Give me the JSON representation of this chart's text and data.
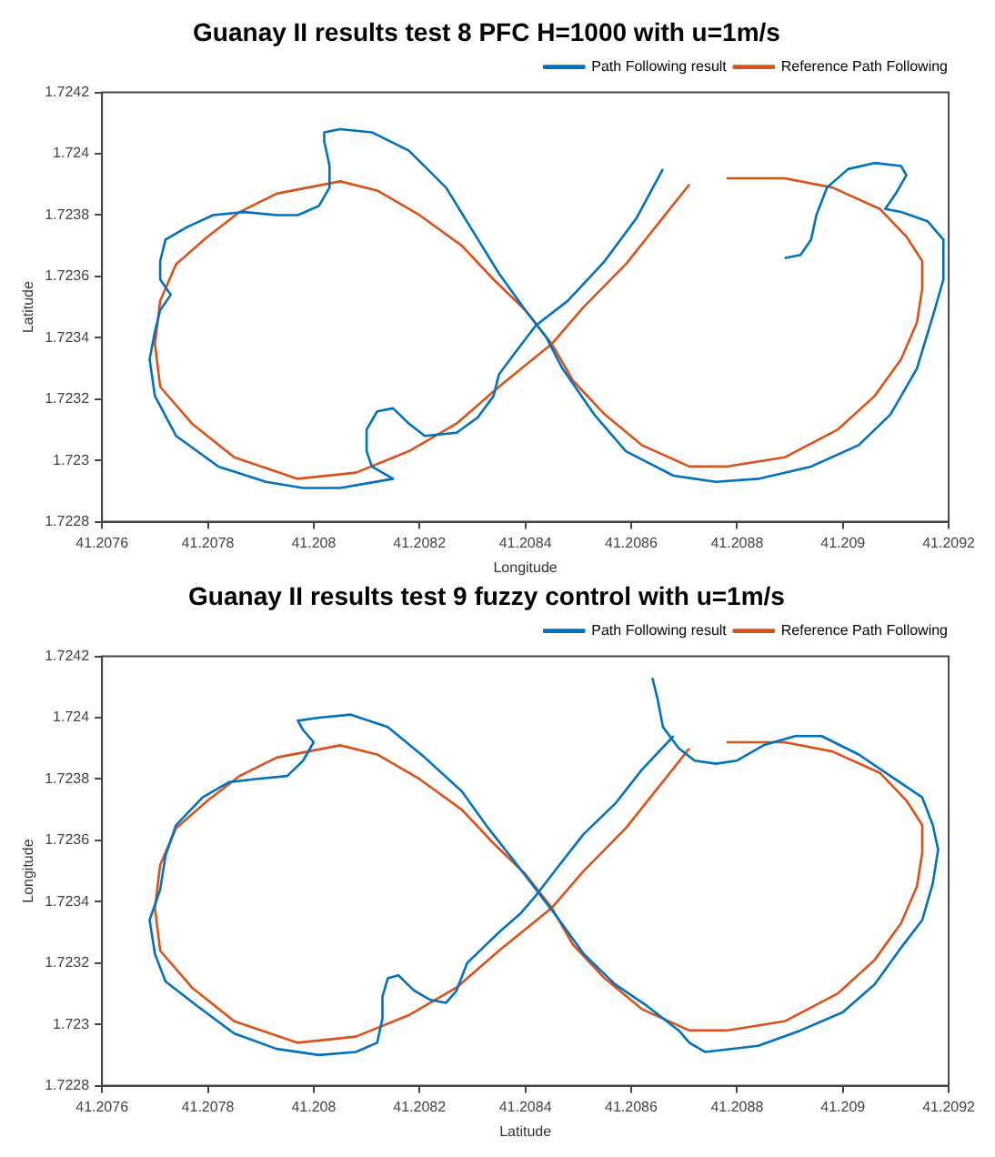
{
  "chart_data": [
    {
      "type": "line",
      "title": "Guanay II results test 8 PFC H=1000 with u=1m/s",
      "xlabel": "Longitude",
      "ylabel": "Latitude",
      "xlim": [
        41.2076,
        41.2092
      ],
      "xticks": [
        41.2076,
        41.2078,
        41.208,
        41.2082,
        41.2084,
        41.2086,
        41.2088,
        41.209,
        41.2092
      ],
      "ylim": [
        1.7228,
        1.7242
      ],
      "yticks": [
        1.7228,
        1.723,
        1.7232,
        1.7234,
        1.7236,
        1.7238,
        1.724,
        1.7242
      ],
      "legend": "top right",
      "marker": "none",
      "series": [
        {
          "name": "Path Following result",
          "color": "#0072bd",
          "x": [
            41.20866,
            41.20861,
            41.20855,
            41.20848,
            41.20842,
            41.20838,
            41.20835,
            41.20834,
            41.20831,
            41.20827,
            41.20821,
            41.20818,
            41.20815,
            41.20812,
            41.2081,
            41.2081,
            41.20811,
            41.20815,
            41.20805,
            41.20798,
            41.20791,
            41.20782,
            41.20774,
            41.2077,
            41.20769,
            41.2077,
            41.20771,
            41.20773,
            41.20771,
            41.20771,
            41.20772,
            41.20776,
            41.20781,
            41.20787,
            41.20793,
            41.20797,
            41.20801,
            41.20803,
            41.20803,
            41.20802,
            41.20802,
            41.20805,
            41.20811,
            41.20818,
            41.20825,
            41.2083,
            41.20835,
            41.2084,
            41.20844,
            41.20847,
            41.20853,
            41.20859,
            41.20868,
            41.20876,
            41.20884,
            41.20894,
            41.20903,
            41.20909,
            41.20914,
            41.20917,
            41.20919,
            41.20919,
            41.20916,
            41.20911,
            41.20908,
            41.2091,
            41.20912,
            41.20911,
            41.20906,
            41.20901,
            41.20897,
            41.20895,
            41.20894,
            41.20892,
            41.20889
          ],
          "values": [
            1.72395,
            1.72379,
            1.72365,
            1.72352,
            1.72344,
            1.72335,
            1.72328,
            1.72321,
            1.72314,
            1.72309,
            1.72308,
            1.72312,
            1.72317,
            1.72316,
            1.7231,
            1.72303,
            1.72298,
            1.72294,
            1.72291,
            1.72291,
            1.72293,
            1.72298,
            1.72308,
            1.72321,
            1.72333,
            1.72342,
            1.72349,
            1.72354,
            1.72359,
            1.72365,
            1.72372,
            1.72376,
            1.7238,
            1.72381,
            1.7238,
            1.7238,
            1.72383,
            1.72389,
            1.72396,
            1.72404,
            1.72407,
            1.72408,
            1.72407,
            1.72401,
            1.72389,
            1.72375,
            1.72361,
            1.72349,
            1.7234,
            1.7233,
            1.72315,
            1.72303,
            1.72295,
            1.72293,
            1.72294,
            1.72298,
            1.72305,
            1.72315,
            1.7233,
            1.72347,
            1.72359,
            1.72372,
            1.72378,
            1.72381,
            1.72382,
            1.72387,
            1.72393,
            1.72396,
            1.72397,
            1.72395,
            1.72389,
            1.7238,
            1.72372,
            1.72367,
            1.72366
          ]
        },
        {
          "name": "Reference Path Following",
          "color": "#d95319",
          "x": [
            41.20878,
            41.20889,
            41.20898,
            41.20907,
            41.20912,
            41.20915,
            41.20915,
            41.20914,
            41.20911,
            41.20906,
            41.20899,
            41.20889,
            41.20878,
            41.20871,
            41.20862,
            41.20855,
            41.20849,
            41.20845,
            41.2084,
            41.20834,
            41.20828,
            41.2082,
            41.20812,
            41.20805,
            41.20799,
            41.20793,
            41.20786,
            41.2078,
            41.20774,
            41.20771,
            41.2077,
            41.20771,
            41.20777,
            41.20785,
            41.20797,
            41.20808,
            41.20818,
            41.20827,
            41.20835,
            41.20845,
            41.20851,
            41.20859,
            41.20865,
            41.20871
          ],
          "values": [
            1.72392,
            1.72392,
            1.72389,
            1.72382,
            1.72373,
            1.72365,
            1.72356,
            1.72345,
            1.72333,
            1.72321,
            1.7231,
            1.72301,
            1.72298,
            1.72298,
            1.72305,
            1.72315,
            1.72326,
            1.72338,
            1.72349,
            1.72359,
            1.7237,
            1.7238,
            1.72388,
            1.72391,
            1.72389,
            1.72387,
            1.72381,
            1.72373,
            1.72364,
            1.72352,
            1.72338,
            1.72324,
            1.72312,
            1.72301,
            1.72294,
            1.72296,
            1.72303,
            1.72312,
            1.72324,
            1.72338,
            1.7235,
            1.72364,
            1.72377,
            1.7239
          ]
        }
      ]
    },
    {
      "type": "line",
      "title": "Guanay II results test 9 fuzzy control with u=1m/s",
      "xlabel": "Latitude",
      "ylabel": "Longitude",
      "xlim": [
        41.2076,
        41.2092
      ],
      "xticks": [
        41.2076,
        41.2078,
        41.208,
        41.2082,
        41.2084,
        41.2086,
        41.2088,
        41.209,
        41.2092
      ],
      "ylim": [
        1.7228,
        1.7242
      ],
      "yticks": [
        1.7228,
        1.723,
        1.7232,
        1.7234,
        1.7236,
        1.7238,
        1.724,
        1.7242
      ],
      "legend": "top right",
      "marker": "none",
      "series": [
        {
          "name": "Path Following result",
          "color": "#0072bd",
          "x": [
            41.20864,
            41.20865,
            41.20866,
            41.20869,
            41.20872,
            41.20876,
            41.2088,
            41.20885,
            41.20891,
            41.20896,
            41.20903,
            41.20909,
            41.20915,
            41.20917,
            41.20918,
            41.20917,
            41.20915,
            41.20911,
            41.20906,
            41.209,
            41.20892,
            41.20884,
            41.20874,
            41.20871,
            41.20869,
            41.20863,
            41.20857,
            41.20851,
            41.20846,
            41.20842,
            41.20838,
            41.20833,
            41.20828,
            41.20821,
            41.20814,
            41.20807,
            41.20801,
            41.20797,
            41.20798,
            41.208,
            41.20798,
            41.20795,
            41.20789,
            41.20784,
            41.20779,
            41.20774,
            41.20772,
            41.20771,
            41.20769,
            41.2077,
            41.20772,
            41.20778,
            41.20785,
            41.20793,
            41.20801,
            41.20808,
            41.20812,
            41.20813,
            41.20813,
            41.20814,
            41.20816,
            41.20819,
            41.20822,
            41.20825,
            41.20827,
            41.20829,
            41.20832,
            41.20835,
            41.20839,
            41.20842,
            41.20846,
            41.20851,
            41.20857,
            41.20862,
            41.20868
          ],
          "values": [
            1.72413,
            1.72406,
            1.72397,
            1.7239,
            1.72386,
            1.72385,
            1.72386,
            1.72391,
            1.72394,
            1.72394,
            1.72388,
            1.72381,
            1.72374,
            1.72365,
            1.72357,
            1.72346,
            1.72334,
            1.72325,
            1.72313,
            1.72304,
            1.72298,
            1.72293,
            1.72291,
            1.72294,
            1.72298,
            1.72306,
            1.72313,
            1.72323,
            1.72335,
            1.72344,
            1.72353,
            1.72364,
            1.72376,
            1.72387,
            1.72397,
            1.72401,
            1.724,
            1.72399,
            1.72396,
            1.72392,
            1.72386,
            1.72381,
            1.7238,
            1.72379,
            1.72374,
            1.72365,
            1.72355,
            1.72344,
            1.72334,
            1.72323,
            1.72314,
            1.72306,
            1.72297,
            1.72292,
            1.7229,
            1.72291,
            1.72294,
            1.72302,
            1.72309,
            1.72315,
            1.72316,
            1.72311,
            1.72308,
            1.72307,
            1.72311,
            1.7232,
            1.72325,
            1.7233,
            1.72336,
            1.72342,
            1.72351,
            1.72362,
            1.72372,
            1.72383,
            1.72394
          ]
        },
        {
          "name": "Reference Path Following",
          "color": "#d95319",
          "x": [
            41.20878,
            41.20889,
            41.20898,
            41.20907,
            41.20912,
            41.20915,
            41.20915,
            41.20914,
            41.20911,
            41.20906,
            41.20899,
            41.20889,
            41.20878,
            41.20871,
            41.20862,
            41.20855,
            41.20849,
            41.20845,
            41.2084,
            41.20834,
            41.20828,
            41.2082,
            41.20812,
            41.20805,
            41.20799,
            41.20793,
            41.20786,
            41.2078,
            41.20774,
            41.20771,
            41.2077,
            41.20771,
            41.20777,
            41.20785,
            41.20797,
            41.20808,
            41.20818,
            41.20827,
            41.20835,
            41.20845,
            41.20851,
            41.20859,
            41.20865,
            41.20871
          ],
          "values": [
            1.72392,
            1.72392,
            1.72389,
            1.72382,
            1.72373,
            1.72365,
            1.72356,
            1.72345,
            1.72333,
            1.72321,
            1.7231,
            1.72301,
            1.72298,
            1.72298,
            1.72305,
            1.72315,
            1.72326,
            1.72338,
            1.72349,
            1.72359,
            1.7237,
            1.7238,
            1.72388,
            1.72391,
            1.72389,
            1.72387,
            1.72381,
            1.72373,
            1.72364,
            1.72352,
            1.72338,
            1.72324,
            1.72312,
            1.72301,
            1.72294,
            1.72296,
            1.72303,
            1.72312,
            1.72324,
            1.72338,
            1.7235,
            1.72364,
            1.72377,
            1.7239
          ]
        }
      ]
    }
  ]
}
